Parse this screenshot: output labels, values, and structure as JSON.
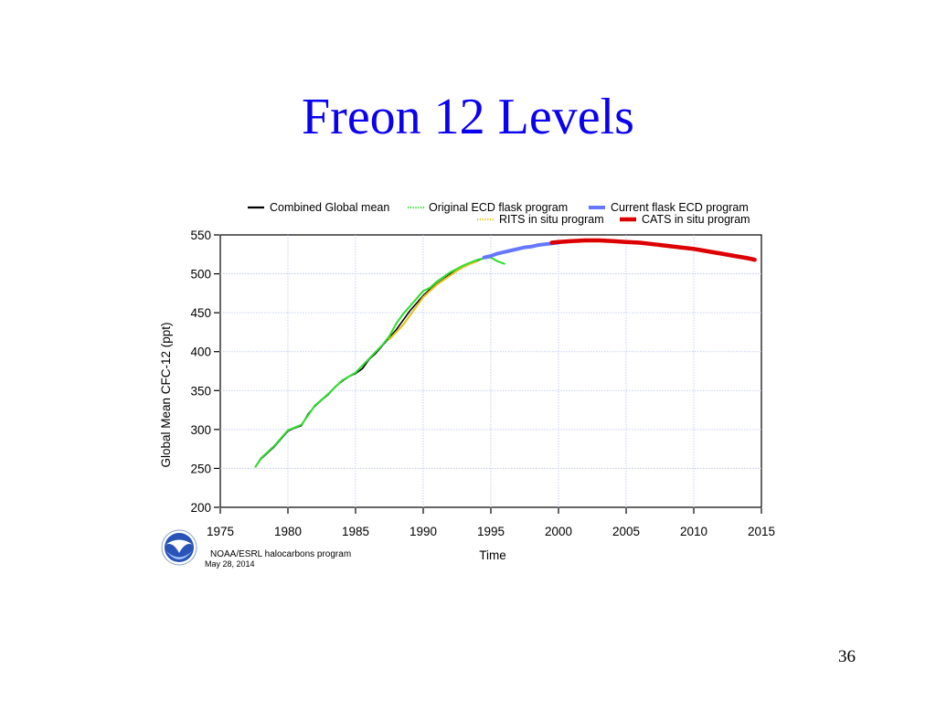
{
  "slide": {
    "title": "Freon 12 Levels",
    "page_number": "36"
  },
  "credit": {
    "org": "NOAA/ESRL halocarbons program",
    "date": "May 28, 2014",
    "logo": "noaa-logo"
  },
  "chart_data": {
    "type": "line",
    "title": "",
    "xlabel": "Time",
    "ylabel": "Global Mean CFC-12 (ppt)",
    "xlim": [
      1975,
      2015
    ],
    "ylim": [
      200,
      550
    ],
    "xticks": [
      1975,
      1980,
      1985,
      1990,
      1995,
      2000,
      2005,
      2010,
      2015
    ],
    "yticks": [
      200,
      250,
      300,
      350,
      400,
      450,
      500,
      550
    ],
    "grid": true,
    "legend_position": "top",
    "series": [
      {
        "name": "Combined Global mean",
        "color": "#000000",
        "style": "solid",
        "x": [
          1977.6,
          1978.0,
          1978.5,
          1979.0,
          1979.5,
          1980.0,
          1980.5,
          1981.0,
          1981.5,
          1982.0,
          1982.5,
          1983.0,
          1983.5,
          1984.0,
          1984.5,
          1985.0,
          1985.5,
          1986.0,
          1986.5,
          1987.0,
          1987.5,
          1988.0,
          1988.5,
          1989.0,
          1989.5,
          1990.0,
          1990.5,
          1991.0,
          1991.5,
          1992.0,
          1992.5,
          1993.0,
          1993.5,
          1994.0,
          1994.5,
          1995.0
        ],
        "y": [
          252,
          262,
          270,
          278,
          288,
          298,
          302,
          305,
          320,
          330,
          338,
          345,
          355,
          362,
          368,
          372,
          378,
          390,
          398,
          408,
          418,
          428,
          440,
          452,
          462,
          472,
          480,
          487,
          493,
          500,
          505,
          510,
          514,
          517,
          520,
          522
        ]
      },
      {
        "name": "Original ECD flask program",
        "color": "#33dd33",
        "style": "dotted",
        "x": [
          1977.6,
          1978.0,
          1979.0,
          1980.0,
          1981.0,
          1982.0,
          1983.0,
          1984.0,
          1985.0,
          1986.0,
          1987.0,
          1987.5,
          1988.0,
          1988.5,
          1989.0,
          1989.5,
          1990.0,
          1990.5,
          1991.0,
          1992.0,
          1993.0,
          1994.0,
          1994.5,
          1995.0,
          1995.5,
          1996.0
        ],
        "y": [
          252,
          263,
          279,
          299,
          306,
          331,
          346,
          363,
          373,
          391,
          409,
          420,
          436,
          448,
          458,
          468,
          478,
          482,
          490,
          502,
          511,
          518,
          520,
          521,
          516,
          513
        ]
      },
      {
        "name": "Current flask ECD program",
        "color": "#6677ff",
        "style": "solid",
        "x": [
          1994.5,
          1995.0,
          1995.5,
          1996.0,
          1996.5,
          1997.0,
          1997.5,
          1998.0,
          1998.5,
          1999.0,
          1999.5,
          2000.0
        ],
        "y": [
          521,
          523,
          526,
          528,
          530,
          532,
          534,
          535,
          537,
          538,
          539,
          540
        ]
      },
      {
        "name": "RITS in situ program",
        "color": "#e8c020",
        "style": "dotted",
        "x": [
          1987.5,
          1988.0,
          1988.5,
          1989.0,
          1989.5,
          1990.0,
          1990.5,
          1991.0,
          1991.5,
          1992.0,
          1992.5,
          1993.0,
          1993.5,
          1994.0
        ],
        "y": [
          416,
          425,
          434,
          446,
          458,
          470,
          478,
          486,
          492,
          498,
          504,
          509,
          513,
          516
        ]
      },
      {
        "name": "CATS in situ program",
        "color": "#dd0000",
        "style": "solid",
        "x": [
          1999.5,
          2000.0,
          2001.0,
          2002.0,
          2003.0,
          2004.0,
          2005.0,
          2006.0,
          2007.0,
          2008.0,
          2009.0,
          2010.0,
          2011.0,
          2012.0,
          2013.0,
          2014.0,
          2014.5
        ],
        "y": [
          540,
          541,
          542,
          543,
          543,
          542,
          541,
          540,
          538,
          536,
          534,
          532,
          529,
          526,
          523,
          520,
          518
        ]
      }
    ]
  }
}
